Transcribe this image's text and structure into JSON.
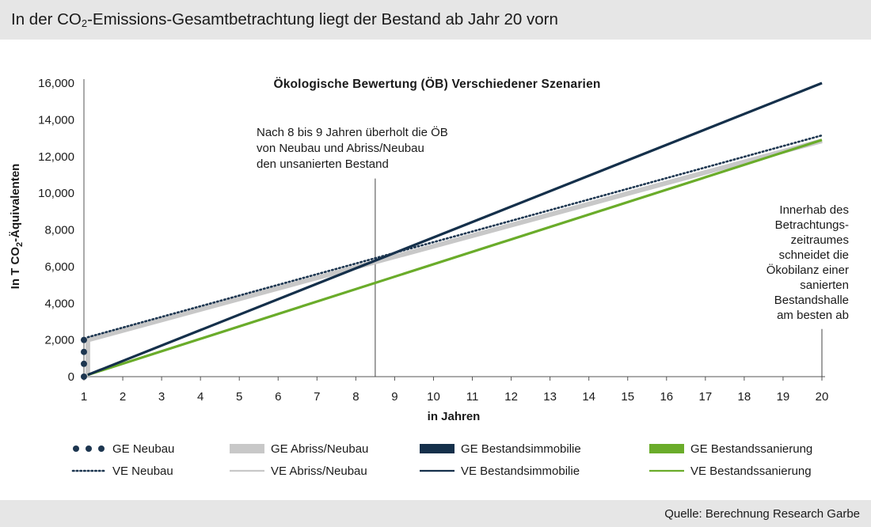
{
  "header": {
    "title_pre": "In der CO",
    "title_sub": "2",
    "title_post": "-Emissions-Gesamtbetrachtung liegt der Bestand ab Jahr 20 vorn"
  },
  "footer": {
    "source": "Quelle: Berechnung Research Garbe"
  },
  "colors": {
    "ge_neubau": "#1d3650",
    "ge_abriss": "#c8c8c8",
    "ge_bestand": "#15304b",
    "ge_sanierung": "#6aac2a",
    "ve_neubau": "#1d3650",
    "ve_abriss": "#c8c8c8",
    "ve_bestand": "#15304b",
    "ve_sanierung": "#6aac2a",
    "axis": "#555555"
  },
  "chart_data": {
    "type": "line",
    "title": "Ökologische Bewertung (ÖB) Verschiedener Szenarien",
    "xlabel": "in Jahren",
    "ylabel_pre": "In T CO",
    "ylabel_sub": "2",
    "ylabel_post": "-Äquivalenten",
    "xlim": [
      1,
      20
    ],
    "ylim": [
      0,
      16000
    ],
    "x_ticks": [
      1,
      2,
      3,
      4,
      5,
      6,
      7,
      8,
      9,
      10,
      11,
      12,
      13,
      14,
      15,
      16,
      17,
      18,
      19,
      20
    ],
    "y_ticks": [
      0,
      2000,
      4000,
      6000,
      8000,
      10000,
      12000,
      14000,
      16000
    ],
    "y_tick_labels": [
      "0",
      "2,000",
      "4,000",
      "6,000",
      "8,000",
      "10,000",
      "12,000",
      "14,000",
      "16,000"
    ],
    "grid": false,
    "legend_position": "bottom",
    "series": [
      {
        "name": "GE Neubau",
        "style": "dots",
        "color_key": "ge_neubau",
        "points": [
          [
            1,
            0
          ],
          [
            1,
            700
          ],
          [
            1,
            1350
          ],
          [
            1,
            2000
          ]
        ]
      },
      {
        "name": "GE Abriss/Neubau",
        "style": "thick",
        "color_key": "ge_abriss",
        "points": [
          [
            1.1,
            0
          ],
          [
            1.1,
            2000
          ],
          [
            20,
            12850
          ]
        ]
      },
      {
        "name": "GE Bestandsimmobilie",
        "style": "thick",
        "color_key": "ge_bestand",
        "points": [
          [
            1.1,
            100
          ],
          [
            20,
            16000
          ]
        ]
      },
      {
        "name": "GE Bestandssanierung",
        "style": "thick",
        "color_key": "ge_sanierung",
        "points": [
          [
            1.1,
            100
          ],
          [
            20,
            12900
          ]
        ]
      },
      {
        "name": "VE Neubau",
        "style": "dotted",
        "color_key": "ve_neubau",
        "points": [
          [
            1.1,
            2150
          ],
          [
            20,
            13150
          ]
        ]
      },
      {
        "name": "VE Abriss/Neubau",
        "style": "thin",
        "color_key": "ve_abriss",
        "points": [
          [
            1.1,
            2000
          ],
          [
            20,
            12850
          ]
        ]
      },
      {
        "name": "VE Bestandsimmobilie",
        "style": "thin",
        "color_key": "ve_bestand",
        "points": [
          [
            1.1,
            100
          ],
          [
            20,
            16000
          ]
        ]
      },
      {
        "name": "VE Bestandssanierung",
        "style": "thin",
        "color_key": "ve_sanierung",
        "points": [
          [
            1.1,
            100
          ],
          [
            20,
            12900
          ]
        ]
      }
    ],
    "annotations": [
      {
        "id": "crossover",
        "x": 8.5,
        "y_top": 10800,
        "lines": [
          "Nach 8 bis 9 Jahren überholt die ÖB",
          "von Neubau und Abriss/Neubau",
          "den unsanierten Bestand"
        ]
      },
      {
        "id": "end",
        "x": 20,
        "y_top": 2600,
        "lines": [
          "Innerhab des",
          "Betrachtungs-",
          "zeitraumes",
          "schneidet die",
          "Ökobilanz einer",
          "sanierten",
          "Bestandshalle",
          "am besten ab"
        ]
      }
    ]
  }
}
